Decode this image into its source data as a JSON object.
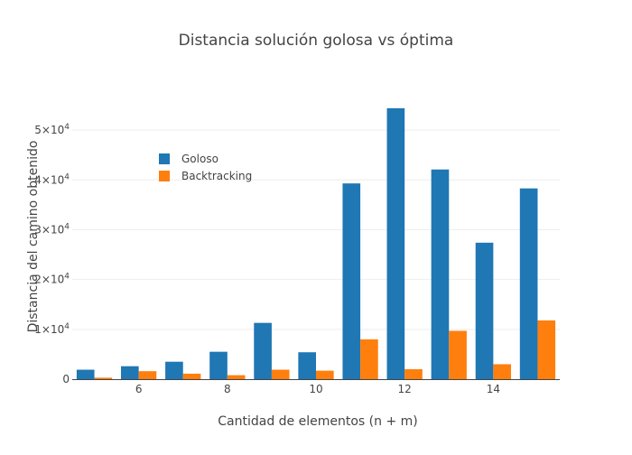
{
  "chart_data": {
    "type": "bar",
    "title": "Distancia  solución golosa vs óptima",
    "xlabel": "Cantidad de elementos (n + m)",
    "ylabel": "Distancia del camino obtenido",
    "x": [
      5,
      6,
      7,
      8,
      9,
      10,
      11,
      12,
      13,
      14,
      15
    ],
    "xlim": [
      4.5,
      15.5
    ],
    "ylim": [
      0,
      58000
    ],
    "x_ticks": [
      6,
      8,
      10,
      12,
      14
    ],
    "y_ticks": [
      {
        "value": 0,
        "mantissa": "0",
        "exponent": ""
      },
      {
        "value": 10000,
        "mantissa": "1×10",
        "exponent": "4"
      },
      {
        "value": 20000,
        "mantissa": "2×10",
        "exponent": "4"
      },
      {
        "value": 30000,
        "mantissa": "3×10",
        "exponent": "4"
      },
      {
        "value": 40000,
        "mantissa": "4×10",
        "exponent": "4"
      },
      {
        "value": 50000,
        "mantissa": "5×10",
        "exponent": "4"
      }
    ],
    "grid": true,
    "legend_position": "top-left",
    "series": [
      {
        "name": "Goloso",
        "color": "#1f77b4",
        "values": [
          1900,
          2600,
          3500,
          5500,
          11300,
          5400,
          39300,
          54400,
          42100,
          27400,
          38300
        ]
      },
      {
        "name": "Backtracking",
        "color": "#ff7f0e",
        "values": [
          300,
          1600,
          1100,
          800,
          1900,
          1700,
          8000,
          2000,
          9700,
          3000,
          11800
        ]
      }
    ]
  }
}
